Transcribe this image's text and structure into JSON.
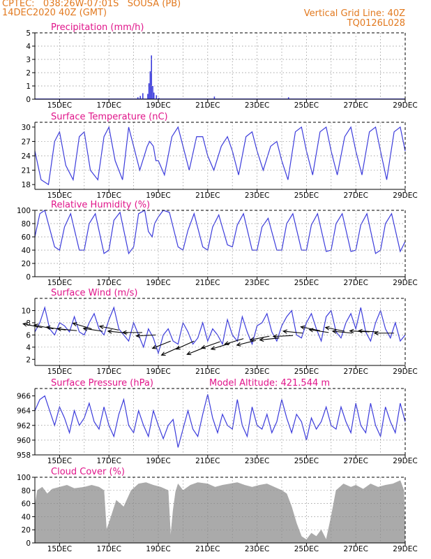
{
  "header": {
    "line1_left": "CPTEC:   038:26W-07:01S   SOUSA (PB)",
    "line2_left": "14DEC2020 40Z (GMT)",
    "line1_right": "Vertical Grid Line: 40Z",
    "line2_right": "TQ0126L028"
  },
  "colors": {
    "header": "#e2791f",
    "title": "#e0158a",
    "line": "#3b3bdc",
    "cloud": "#aaaaaa",
    "arrow": "#000000"
  },
  "x_axis": {
    "start_day": 14.0,
    "end_day": 29.0,
    "tick_days": [
      15,
      17,
      19,
      21,
      23,
      25,
      27,
      29
    ],
    "tick_labels": [
      "15DEC",
      "17DEC",
      "19DEC",
      "21DEC",
      "23DEC",
      "25DEC",
      "27DEC",
      "29DEC"
    ],
    "grid_days": [
      15,
      16,
      17,
      18,
      19,
      20,
      21,
      22,
      23,
      24,
      25,
      26,
      27,
      28
    ]
  },
  "chart_data": [
    {
      "id": "precip",
      "type": "bar",
      "title": "Precipitation (mm/h)",
      "extra_label": "",
      "ylim": [
        0,
        5
      ],
      "yticks": [
        0,
        1,
        2,
        3,
        4,
        5
      ],
      "hgrid": [
        1,
        2,
        3,
        4
      ],
      "x": [
        18.15,
        18.25,
        18.35,
        18.55,
        18.6,
        18.65,
        18.7,
        18.75,
        18.8,
        18.9,
        19.0,
        21.25,
        24.25
      ],
      "values": [
        0.15,
        0.25,
        0.45,
        0.4,
        1.2,
        2.1,
        3.3,
        1.0,
        0.5,
        0.3,
        0.1,
        0.2,
        0.15
      ]
    },
    {
      "id": "temp",
      "type": "line",
      "title": "Surface Temperature (nC)",
      "extra_label": "",
      "ylim": [
        17,
        31
      ],
      "yticks": [
        18,
        21,
        24,
        27,
        30
      ],
      "hgrid": [
        21,
        24,
        27
      ],
      "x": [
        14.0,
        14.25,
        14.55,
        14.8,
        15.0,
        15.25,
        15.55,
        15.8,
        16.0,
        16.25,
        16.55,
        16.8,
        17.0,
        17.25,
        17.55,
        17.8,
        18.0,
        18.25,
        18.55,
        18.65,
        18.8,
        18.9,
        19.0,
        19.25,
        19.55,
        19.8,
        20.0,
        20.25,
        20.55,
        20.8,
        21.0,
        21.25,
        21.55,
        21.8,
        22.0,
        22.25,
        22.55,
        22.8,
        23.0,
        23.25,
        23.55,
        23.8,
        24.0,
        24.25,
        24.55,
        24.8,
        25.0,
        25.25,
        25.55,
        25.8,
        26.0,
        26.25,
        26.55,
        26.8,
        27.0,
        27.25,
        27.55,
        27.8,
        28.0,
        28.25,
        28.55,
        28.8,
        29.0
      ],
      "values": [
        25,
        19,
        18,
        27,
        29,
        22,
        19,
        28,
        29,
        21,
        19,
        28,
        30,
        23,
        19,
        30,
        26,
        21,
        26,
        27,
        26,
        23,
        23,
        20,
        28,
        30,
        26,
        21,
        28,
        28,
        24,
        21,
        26,
        28,
        25,
        20,
        28,
        29,
        25,
        21,
        26,
        27,
        23,
        19,
        29,
        30,
        25,
        20,
        29,
        30,
        25,
        20,
        28,
        30,
        25,
        20,
        29,
        30,
        25,
        19,
        29,
        30,
        25
      ]
    },
    {
      "id": "rh",
      "type": "line",
      "title": "Relative Humidity (%)",
      "extra_label": "",
      "ylim": [
        0,
        100
      ],
      "yticks": [
        0,
        20,
        40,
        60,
        80,
        100
      ],
      "hgrid": [
        20,
        40,
        60,
        80
      ],
      "x": [
        14.0,
        14.2,
        14.4,
        14.8,
        15.0,
        15.2,
        15.45,
        15.8,
        16.0,
        16.2,
        16.45,
        16.8,
        17.0,
        17.2,
        17.45,
        17.8,
        18.0,
        18.2,
        18.45,
        18.6,
        18.75,
        18.85,
        19.0,
        19.2,
        19.45,
        19.8,
        20.0,
        20.2,
        20.45,
        20.8,
        21.0,
        21.2,
        21.45,
        21.8,
        22.0,
        22.2,
        22.45,
        22.8,
        23.0,
        23.2,
        23.45,
        23.8,
        24.0,
        24.2,
        24.45,
        24.8,
        25.0,
        25.2,
        25.45,
        25.8,
        26.0,
        26.2,
        26.45,
        26.8,
        27.0,
        27.2,
        27.45,
        27.8,
        28.0,
        28.2,
        28.45,
        28.8,
        29.0
      ],
      "values": [
        60,
        95,
        100,
        45,
        40,
        75,
        95,
        40,
        40,
        80,
        95,
        35,
        40,
        85,
        97,
        35,
        45,
        95,
        100,
        68,
        60,
        80,
        90,
        100,
        97,
        45,
        40,
        70,
        95,
        45,
        40,
        75,
        93,
        48,
        45,
        78,
        95,
        40,
        40,
        75,
        88,
        40,
        40,
        80,
        95,
        40,
        40,
        78,
        95,
        38,
        40,
        80,
        95,
        38,
        40,
        78,
        95,
        35,
        40,
        80,
        95,
        38,
        53
      ]
    },
    {
      "id": "wind",
      "type": "line",
      "title": "Surface Wind (m/s)",
      "extra_label": "",
      "ylim": [
        1,
        12
      ],
      "yticks": [
        2,
        4,
        6,
        8,
        10
      ],
      "hgrid": [
        4,
        6,
        8,
        10
      ],
      "x": [
        14.0,
        14.2,
        14.4,
        14.6,
        14.8,
        15.0,
        15.2,
        15.4,
        15.6,
        15.8,
        16.0,
        16.2,
        16.4,
        16.6,
        16.8,
        17.0,
        17.2,
        17.4,
        17.6,
        17.8,
        18.0,
        18.2,
        18.4,
        18.6,
        18.8,
        19.0,
        19.2,
        19.4,
        19.6,
        19.8,
        20.0,
        20.2,
        20.4,
        20.6,
        20.8,
        21.0,
        21.2,
        21.4,
        21.6,
        21.8,
        22.0,
        22.2,
        22.4,
        22.6,
        22.8,
        23.0,
        23.2,
        23.4,
        23.6,
        23.8,
        24.0,
        24.2,
        24.4,
        24.6,
        24.8,
        25.0,
        25.2,
        25.4,
        25.6,
        25.8,
        26.0,
        26.2,
        26.4,
        26.6,
        26.8,
        27.0,
        27.2,
        27.4,
        27.6,
        27.8,
        28.0,
        28.2,
        28.4,
        28.6,
        28.8,
        29.0
      ],
      "values": [
        6.5,
        8,
        10.5,
        7,
        6,
        8,
        7.5,
        6.5,
        9,
        6.5,
        6,
        8,
        9.5,
        7,
        6,
        8.5,
        10.5,
        7,
        6,
        5,
        8,
        6,
        4,
        7,
        5.5,
        3,
        6,
        7,
        5,
        4.5,
        8,
        6.5,
        4.5,
        5.5,
        8,
        5,
        7,
        6,
        4.5,
        8.5,
        6,
        5,
        9,
        6.5,
        4.5,
        7.5,
        8,
        9.5,
        6.5,
        5,
        7.5,
        9,
        10,
        6,
        5.5,
        8,
        9.5,
        7,
        5,
        9,
        10,
        6.5,
        5.5,
        8,
        9.5,
        7,
        10.5,
        6.5,
        5,
        8,
        10,
        7,
        5.5,
        8,
        5,
        6
      ],
      "arrow_x": [
        14.3,
        14.75,
        15.25,
        15.7,
        16.3,
        16.75,
        17.4,
        17.75,
        18.35,
        18.9,
        19.5,
        19.85,
        20.45,
        20.9,
        21.5,
        21.9,
        22.45,
        22.95,
        23.5,
        23.9,
        24.45,
        24.85,
        25.55,
        25.9,
        26.55,
        26.85,
        27.55,
        27.9,
        28.55
      ],
      "arrow_y": [
        7.2,
        7.0,
        6.8,
        6.7,
        7.0,
        6.6,
        6.8,
        6.3,
        6.4,
        6.0,
        5.0,
        4.0,
        5.0,
        4.0,
        4.9,
        4.6,
        5.4,
        5.1,
        5.8,
        5.5,
        5.9,
        6.3,
        6.7,
        6.4,
        6.6,
        6.3,
        6.5,
        6.5,
        6.3
      ],
      "arrow_u": [
        -1,
        -1,
        -1,
        -1,
        -1,
        -1,
        -1,
        -1,
        -1,
        -1,
        -1,
        -1,
        -1,
        -1,
        -1,
        -1,
        -1,
        -1,
        -1,
        -1,
        -1,
        -1,
        -1,
        -1,
        -1,
        -1,
        -1,
        -1,
        -1
      ],
      "arrow_v": [
        0.2,
        0.2,
        0.15,
        0.1,
        0.3,
        0.15,
        0.2,
        0.1,
        0.0,
        -0.05,
        -0.4,
        -0.45,
        -0.45,
        -0.4,
        -0.35,
        -0.3,
        -0.3,
        -0.25,
        -0.2,
        -0.1,
        -0.05,
        0.1,
        0.2,
        0.15,
        0.2,
        0.1,
        0.05,
        0.05,
        0.0
      ]
    },
    {
      "id": "pres",
      "type": "line",
      "title": "Surface Pressure (hPa)",
      "extra_label": "Model Altitude: 421.544 m",
      "ylim": [
        958,
        967
      ],
      "yticks": [
        958,
        960,
        962,
        964,
        966
      ],
      "hgrid": [
        960,
        962,
        964
      ],
      "x": [
        14.0,
        14.2,
        14.4,
        14.6,
        14.8,
        15.0,
        15.2,
        15.4,
        15.6,
        15.8,
        16.0,
        16.2,
        16.4,
        16.6,
        16.8,
        17.0,
        17.2,
        17.4,
        17.6,
        17.8,
        18.0,
        18.2,
        18.4,
        18.6,
        18.8,
        19.0,
        19.2,
        19.4,
        19.6,
        19.8,
        20.0,
        20.2,
        20.4,
        20.6,
        20.8,
        21.0,
        21.2,
        21.4,
        21.6,
        21.8,
        22.0,
        22.2,
        22.4,
        22.6,
        22.8,
        23.0,
        23.2,
        23.4,
        23.6,
        23.8,
        24.0,
        24.2,
        24.4,
        24.6,
        24.8,
        25.0,
        25.2,
        25.4,
        25.6,
        25.8,
        26.0,
        26.2,
        26.4,
        26.6,
        26.8,
        27.0,
        27.2,
        27.4,
        27.6,
        27.8,
        28.0,
        28.2,
        28.4,
        28.6,
        28.8,
        29.0
      ],
      "values": [
        964,
        965.5,
        966,
        964,
        962,
        964.5,
        963,
        961,
        964,
        962,
        963,
        965,
        962.5,
        961.5,
        964.5,
        962,
        960.5,
        963.5,
        965.5,
        962,
        961,
        964,
        962,
        960.5,
        964,
        962,
        960.2,
        962,
        962.8,
        959,
        961.5,
        964,
        961.5,
        960.5,
        963.5,
        966.2,
        963,
        961,
        963.5,
        962,
        961.5,
        965.5,
        962,
        960.5,
        964.5,
        962,
        961.5,
        963.5,
        961,
        962.5,
        965.5,
        963,
        961,
        963.5,
        962.5,
        960,
        963,
        961.5,
        962.5,
        964.5,
        962,
        961.5,
        964.5,
        962.5,
        961,
        965,
        962,
        961,
        965,
        962,
        960.5,
        964.5,
        962.5,
        961,
        965,
        962.5
      ]
    },
    {
      "id": "cloud",
      "type": "area",
      "title": "Cloud Cover (%)",
      "extra_label": "",
      "ylim": [
        0,
        100
      ],
      "yticks": [
        0,
        20,
        40,
        60,
        80,
        100
      ],
      "hgrid": [
        20,
        40,
        60,
        80
      ],
      "x": [
        14.0,
        14.1,
        14.3,
        14.5,
        14.7,
        15.0,
        15.3,
        15.6,
        16.0,
        16.3,
        16.6,
        16.8,
        16.85,
        16.9,
        17.0,
        17.3,
        17.6,
        17.9,
        18.2,
        18.5,
        18.8,
        19.1,
        19.4,
        19.5,
        19.6,
        19.7,
        19.8,
        20.0,
        20.3,
        20.6,
        21.0,
        21.3,
        21.6,
        21.9,
        22.2,
        22.5,
        22.8,
        23.1,
        23.4,
        23.7,
        24.0,
        24.2,
        24.4,
        24.6,
        24.8,
        25.0,
        25.2,
        25.4,
        25.6,
        25.8,
        26.0,
        26.2,
        26.5,
        26.8,
        27.0,
        27.3,
        27.6,
        27.9,
        28.2,
        28.5,
        28.8,
        28.95,
        29.0
      ],
      "values": [
        55,
        80,
        85,
        75,
        82,
        85,
        88,
        83,
        85,
        88,
        85,
        80,
        50,
        20,
        30,
        65,
        55,
        80,
        90,
        92,
        88,
        85,
        80,
        10,
        50,
        78,
        90,
        80,
        88,
        92,
        90,
        85,
        88,
        90,
        92,
        88,
        85,
        88,
        90,
        85,
        80,
        75,
        55,
        30,
        10,
        5,
        15,
        10,
        20,
        5,
        40,
        80,
        90,
        85,
        88,
        82,
        90,
        85,
        88,
        90,
        95,
        80,
        5
      ]
    }
  ]
}
